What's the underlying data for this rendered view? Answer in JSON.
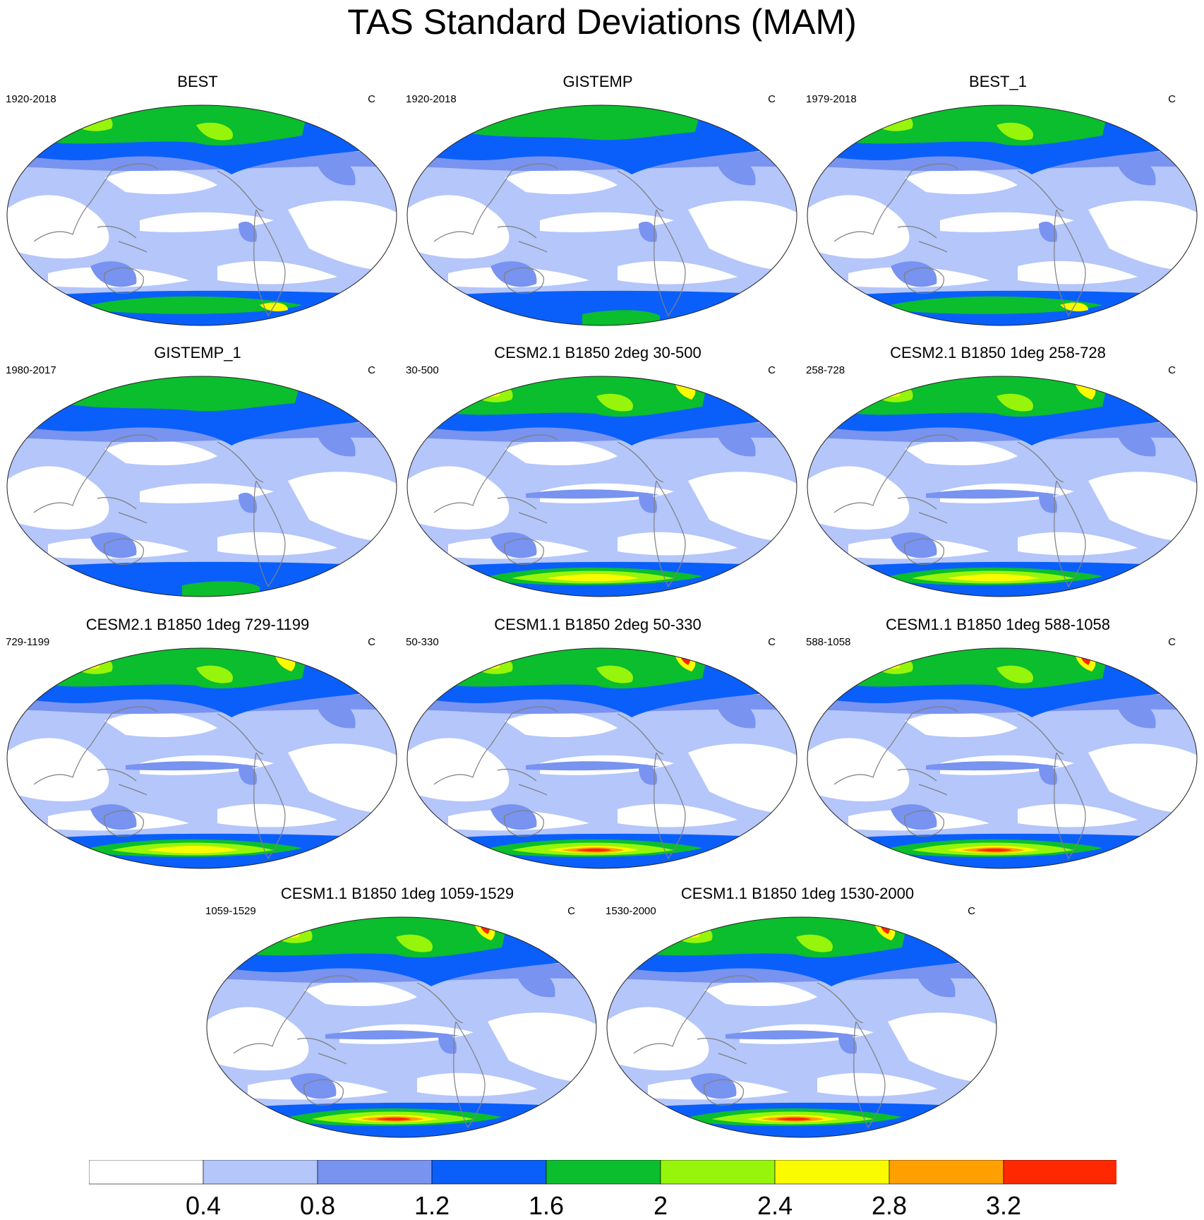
{
  "title": "TAS Standard Deviations (MAM)",
  "colorbar": {
    "levels": [
      "0.4",
      "0.8",
      "1.2",
      "1.6",
      "2",
      "2.4",
      "2.8",
      "3.2"
    ],
    "colors": [
      "#ffffff",
      "#b4c6fa",
      "#7893f0",
      "#0a5ffa",
      "#0abe2d",
      "#96f50a",
      "#fafa00",
      "#ffa000",
      "#ff2800"
    ]
  },
  "panels": [
    {
      "title": "BEST",
      "period": "1920-2018",
      "units": "C",
      "kind": "obs"
    },
    {
      "title": "GISTEMP",
      "period": "1920-2018",
      "units": "C",
      "kind": "obs-coarse"
    },
    {
      "title": "BEST_1",
      "period": "1979-2018",
      "units": "C",
      "kind": "obs"
    },
    {
      "title": "GISTEMP_1",
      "period": "1980-2017",
      "units": "C",
      "kind": "obs-coarse"
    },
    {
      "title": "CESM2.1 B1850 2deg 30-500",
      "period": "30-500",
      "units": "C",
      "kind": "model"
    },
    {
      "title": "CESM2.1 B1850 1deg 258-728",
      "period": "258-728",
      "units": "C",
      "kind": "model"
    },
    {
      "title": "CESM2.1 B1850 1deg 729-1199",
      "period": "729-1199",
      "units": "C",
      "kind": "model"
    },
    {
      "title": "CESM1.1 B1850 2deg 50-330",
      "period": "50-330",
      "units": "C",
      "kind": "model-hot"
    },
    {
      "title": "CESM1.1 B1850 1deg 588-1058",
      "period": "588-1058",
      "units": "C",
      "kind": "model-hot"
    },
    {
      "title": "CESM1.1 B1850 1deg 1059-1529",
      "period": "1059-1529",
      "units": "C",
      "kind": "model-hot"
    },
    {
      "title": "CESM1.1 B1850 1deg 1530-2000",
      "period": "1530-2000",
      "units": "C",
      "kind": "model-hot"
    }
  ]
}
